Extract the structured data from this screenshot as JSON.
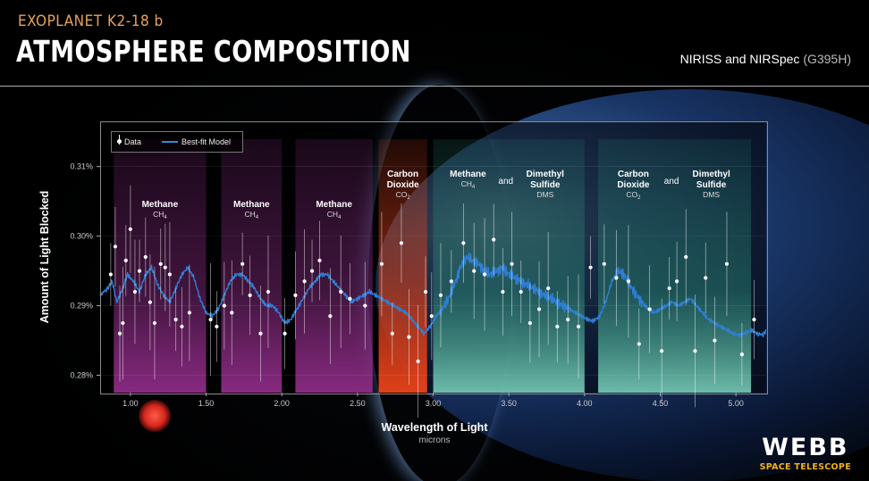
{
  "header": {
    "kicker": "EXOPLANET K2-18 b",
    "title": "ATMOSPHERE COMPOSITION",
    "instrument": "NIRISS and NIRSpec",
    "grating": "(G395H)"
  },
  "branding": {
    "name": "WEBB",
    "sub": "SPACE TELESCOPE"
  },
  "legend": {
    "data": "Data",
    "model": "Best-fit Model"
  },
  "colors": {
    "model": "#2f7fd6",
    "methane": "#8e2c86",
    "co2": "#e0401a",
    "mixed": "#2a8f7a",
    "accent": "#e9a25a",
    "brand": "#f2b21e"
  },
  "chart_data": {
    "type": "line",
    "xlabel": "Wavelength of Light",
    "xunits": "microns",
    "ylabel": "Amount of Light Blocked",
    "xlim": [
      0.8,
      5.2
    ],
    "ylim": [
      0.2775,
      0.3165
    ],
    "xticks": [
      "1.00",
      "1.50",
      "2.00",
      "2.50",
      "3.00",
      "3.50",
      "4.00",
      "4.50",
      "5.00"
    ],
    "xtick_values": [
      1.0,
      1.5,
      2.0,
      2.5,
      3.0,
      3.5,
      4.0,
      4.5,
      5.0
    ],
    "yticks": [
      "0.28%",
      "0.29%",
      "0.30%",
      "0.31%"
    ],
    "ytick_values": [
      0.28,
      0.29,
      0.3,
      0.31
    ],
    "bands": [
      {
        "x0": 0.89,
        "x1": 1.5,
        "kind": "methane",
        "lines": [
          {
            "t": "Methane",
            "s": "CH",
            "sub": "4"
          }
        ]
      },
      {
        "x0": 1.6,
        "x1": 2.0,
        "kind": "methane",
        "lines": [
          {
            "t": "Methane",
            "s": "CH",
            "sub": "4"
          }
        ]
      },
      {
        "x0": 2.09,
        "x1": 2.6,
        "kind": "methane",
        "lines": [
          {
            "t": "Methane",
            "s": "CH",
            "sub": "4"
          }
        ]
      },
      {
        "x0": 2.64,
        "x1": 2.96,
        "kind": "co2",
        "lines": [
          {
            "t": "Carbon",
            "t2": "Dioxide",
            "s": "CO",
            "sub": "2"
          }
        ]
      },
      {
        "x0": 3.0,
        "x1": 4.0,
        "kind": "mixed",
        "lines": [
          {
            "t": "Methane",
            "s": "CH",
            "sub": "4"
          },
          {
            "t": "and"
          },
          {
            "t": "Dimethyl",
            "t2": "Sulfide",
            "s": "DMS"
          }
        ]
      },
      {
        "x0": 4.09,
        "x1": 5.1,
        "kind": "mixed",
        "lines": [
          {
            "t": "Carbon",
            "t2": "Dioxide",
            "s": "CO",
            "sub": "2"
          },
          {
            "t": "and"
          },
          {
            "t": "Dimethyl",
            "t2": "Sulfide",
            "s": "DMS"
          }
        ]
      }
    ],
    "series": [
      {
        "name": "Best-fit Model",
        "x": [
          0.8,
          0.85,
          0.88,
          0.91,
          0.95,
          0.98,
          1.02,
          1.06,
          1.1,
          1.14,
          1.18,
          1.22,
          1.26,
          1.3,
          1.34,
          1.38,
          1.42,
          1.46,
          1.5,
          1.54,
          1.58,
          1.62,
          1.66,
          1.7,
          1.74,
          1.78,
          1.82,
          1.86,
          1.9,
          1.94,
          1.98,
          2.02,
          2.06,
          2.1,
          2.14,
          2.18,
          2.22,
          2.26,
          2.3,
          2.34,
          2.38,
          2.42,
          2.46,
          2.5,
          2.54,
          2.58,
          2.62,
          2.66,
          2.7,
          2.74,
          2.78,
          2.82,
          2.86,
          2.9,
          2.94,
          2.98,
          3.02,
          3.06,
          3.1,
          3.14,
          3.18,
          3.22,
          3.26,
          3.3,
          3.34,
          3.38,
          3.42,
          3.46,
          3.5,
          3.54,
          3.58,
          3.62,
          3.66,
          3.7,
          3.74,
          3.78,
          3.82,
          3.86,
          3.9,
          3.94,
          3.98,
          4.02,
          4.06,
          4.1,
          4.14,
          4.18,
          4.22,
          4.26,
          4.3,
          4.34,
          4.38,
          4.42,
          4.46,
          4.5,
          4.54,
          4.58,
          4.62,
          4.66,
          4.7,
          4.74,
          4.78,
          4.82,
          4.86,
          4.9,
          4.94,
          4.98,
          5.02,
          5.06,
          5.1,
          5.14,
          5.18,
          5.2
        ],
        "y": [
          0.2915,
          0.2925,
          0.2935,
          0.2905,
          0.2925,
          0.2945,
          0.2935,
          0.292,
          0.2945,
          0.2955,
          0.293,
          0.2915,
          0.2905,
          0.2925,
          0.2945,
          0.2955,
          0.294,
          0.291,
          0.289,
          0.2885,
          0.2895,
          0.2915,
          0.2935,
          0.2945,
          0.2945,
          0.2935,
          0.2925,
          0.291,
          0.29,
          0.29,
          0.289,
          0.2875,
          0.288,
          0.2895,
          0.291,
          0.2925,
          0.2935,
          0.2945,
          0.2945,
          0.2935,
          0.2925,
          0.2915,
          0.2905,
          0.291,
          0.2915,
          0.292,
          0.2915,
          0.291,
          0.2905,
          0.29,
          0.2895,
          0.289,
          0.288,
          0.287,
          0.286,
          0.287,
          0.2885,
          0.2895,
          0.291,
          0.293,
          0.2955,
          0.297,
          0.2965,
          0.296,
          0.295,
          0.2945,
          0.295,
          0.2955,
          0.2945,
          0.294,
          0.2935,
          0.293,
          0.2925,
          0.292,
          0.2915,
          0.291,
          0.2905,
          0.29,
          0.2895,
          0.289,
          0.2885,
          0.288,
          0.2878,
          0.2885,
          0.2905,
          0.2935,
          0.295,
          0.2945,
          0.293,
          0.2915,
          0.2905,
          0.2895,
          0.289,
          0.2895,
          0.29,
          0.2905,
          0.29,
          0.2905,
          0.291,
          0.29,
          0.289,
          0.288,
          0.2875,
          0.287,
          0.2865,
          0.286,
          0.2858,
          0.286,
          0.2865,
          0.286,
          0.2858,
          0.2865
        ]
      },
      {
        "name": "Data",
        "x": [
          0.87,
          0.9,
          0.93,
          0.95,
          0.97,
          1.0,
          1.03,
          1.06,
          1.1,
          1.13,
          1.16,
          1.2,
          1.23,
          1.26,
          1.3,
          1.34,
          1.39,
          1.53,
          1.57,
          1.62,
          1.67,
          1.74,
          1.79,
          1.86,
          1.91,
          2.02,
          2.09,
          2.15,
          2.2,
          2.25,
          2.32,
          2.39,
          2.45,
          2.55,
          2.66,
          2.73,
          2.79,
          2.84,
          2.9,
          2.95,
          2.99,
          3.05,
          3.12,
          3.2,
          3.27,
          3.34,
          3.4,
          3.46,
          3.52,
          3.58,
          3.64,
          3.7,
          3.76,
          3.82,
          3.89,
          3.96,
          4.04,
          4.13,
          4.21,
          4.29,
          4.36,
          4.43,
          4.51,
          4.56,
          4.61,
          4.67,
          4.73,
          4.8,
          4.86,
          4.94,
          5.04,
          5.12
        ],
        "y": [
          0.2945,
          0.2985,
          0.286,
          0.2875,
          0.2965,
          0.301,
          0.292,
          0.295,
          0.297,
          0.2905,
          0.2875,
          0.296,
          0.2955,
          0.2945,
          0.288,
          0.287,
          0.289,
          0.288,
          0.287,
          0.29,
          0.289,
          0.296,
          0.2915,
          0.286,
          0.292,
          0.286,
          0.2915,
          0.2935,
          0.295,
          0.2965,
          0.2885,
          0.292,
          0.291,
          0.29,
          0.296,
          0.286,
          0.299,
          0.2855,
          0.282,
          0.292,
          0.2885,
          0.2915,
          0.2935,
          0.299,
          0.295,
          0.2945,
          0.2995,
          0.292,
          0.296,
          0.292,
          0.2875,
          0.2895,
          0.2925,
          0.287,
          0.288,
          0.287,
          0.2955,
          0.296,
          0.294,
          0.2935,
          0.2845,
          0.2895,
          0.2835,
          0.2925,
          0.2935,
          0.297,
          0.2835,
          0.294,
          0.285,
          0.296,
          0.283,
          0.288
        ]
      }
    ]
  }
}
